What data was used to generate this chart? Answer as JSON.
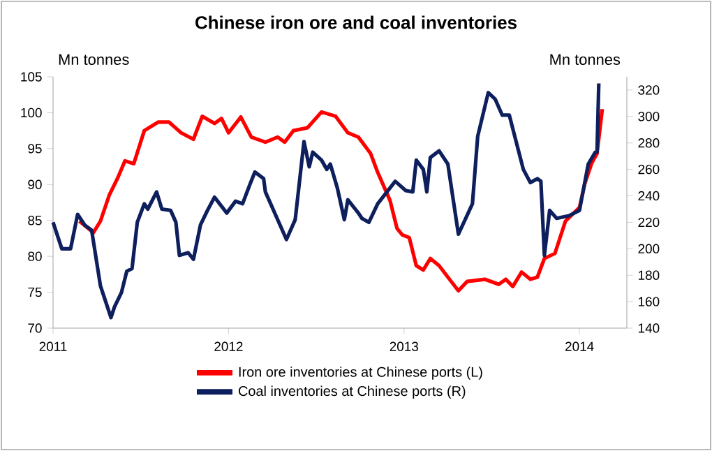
{
  "chart_data": {
    "type": "line",
    "title": "Chinese iron ore and coal inventories",
    "ylabel": "Mn tonnes",
    "y2label": "Mn tonnes",
    "xlim": [
      2011,
      2014.27
    ],
    "xticks": [
      2011,
      2012,
      2013,
      2014
    ],
    "ylim": [
      70,
      105
    ],
    "yticks": [
      70,
      75,
      80,
      85,
      90,
      95,
      100,
      105
    ],
    "y2lim": [
      140,
      330
    ],
    "y2ticks": [
      140,
      160,
      180,
      200,
      220,
      240,
      260,
      280,
      300,
      320
    ],
    "legend": "bottom",
    "marker": "none",
    "line_style": "solid",
    "grid": false,
    "series": [
      {
        "name": "Iron ore inventories at Chinese ports (L)",
        "color": "#ff0000",
        "axis": "y",
        "x": [
          2011.15,
          2011.23,
          2011.27,
          2011.32,
          2011.37,
          2011.41,
          2011.46,
          2011.52,
          2011.6,
          2011.66,
          2011.73,
          2011.8,
          2011.85,
          2011.92,
          2011.96,
          2012.0,
          2012.07,
          2012.13,
          2012.21,
          2012.28,
          2012.32,
          2012.37,
          2012.45,
          2012.53,
          2012.61,
          2012.68,
          2012.74,
          2012.81,
          2012.85,
          2012.92,
          2012.96,
          2012.99,
          2013.03,
          2013.07,
          2013.11,
          2013.15,
          2013.2,
          2013.25,
          2013.31,
          2013.36,
          2013.46,
          2013.54,
          2013.58,
          2013.62,
          2013.67,
          2013.72,
          2013.76,
          2013.8,
          2013.86,
          2013.92,
          2014.0,
          2014.03,
          2014.07,
          2014.1,
          2014.13
        ],
        "values": [
          84.9,
          83.3,
          84.9,
          88.5,
          91,
          93.3,
          92.9,
          97.5,
          98.7,
          98.7,
          97.2,
          96.3,
          99.5,
          98.5,
          99.2,
          97.2,
          99.4,
          96.6,
          95.9,
          96.6,
          95.9,
          97.5,
          97.9,
          100.1,
          99.5,
          97.2,
          96.6,
          94.3,
          91.7,
          87.8,
          83.9,
          83.0,
          82.6,
          78.7,
          78.1,
          79.7,
          78.7,
          77.1,
          75.2,
          76.5,
          76.8,
          76.1,
          76.8,
          75.8,
          77.8,
          76.8,
          77.1,
          79.7,
          80.4,
          84.9,
          86.8,
          90.1,
          93.0,
          94.3,
          100.5
        ]
      },
      {
        "name": "Coal inventories at Chinese ports (R)",
        "color": "#0d1f5c",
        "axis": "y2",
        "x": [
          2011.0,
          2011.05,
          2011.1,
          2011.14,
          2011.18,
          2011.22,
          2011.27,
          2011.33,
          2011.35,
          2011.39,
          2011.42,
          2011.45,
          2011.48,
          2011.52,
          2011.54,
          2011.59,
          2011.62,
          2011.67,
          2011.7,
          2011.72,
          2011.77,
          2011.8,
          2011.84,
          2011.88,
          2011.92,
          2011.99,
          2012.04,
          2012.08,
          2012.12,
          2012.15,
          2012.2,
          2012.21,
          2012.24,
          2012.27,
          2012.33,
          2012.38,
          2012.43,
          2012.46,
          2012.48,
          2012.53,
          2012.56,
          2012.58,
          2012.62,
          2012.66,
          2012.68,
          2012.74,
          2012.76,
          2012.8,
          2012.85,
          2012.95,
          2013.01,
          2013.05,
          2013.07,
          2013.11,
          2013.13,
          2013.15,
          2013.2,
          2013.25,
          2013.31,
          2013.39,
          2013.42,
          2013.48,
          2013.52,
          2013.56,
          2013.6,
          2013.68,
          2013.72,
          2013.76,
          2013.78,
          2013.8,
          2013.83,
          2013.87,
          2013.94,
          2014.0,
          2014.05,
          2014.09,
          2014.1,
          2014.11
        ],
        "values": [
          220,
          200,
          200,
          226,
          218,
          214,
          172,
          148,
          156,
          167,
          183,
          185,
          220,
          234,
          230,
          243,
          230,
          229,
          220,
          195,
          197,
          192,
          218,
          229,
          239,
          227,
          236,
          234,
          248,
          258,
          253,
          243,
          234,
          225,
          207,
          222,
          281,
          262,
          273,
          267,
          260,
          264,
          246,
          222,
          237,
          227,
          223,
          220,
          234,
          251,
          244,
          243,
          267,
          260,
          243,
          269,
          274,
          264,
          211,
          234,
          285,
          318,
          313,
          301,
          301,
          260,
          250,
          253,
          251,
          195,
          229,
          223,
          225,
          229,
          264,
          273,
          273,
          325
        ]
      }
    ]
  }
}
